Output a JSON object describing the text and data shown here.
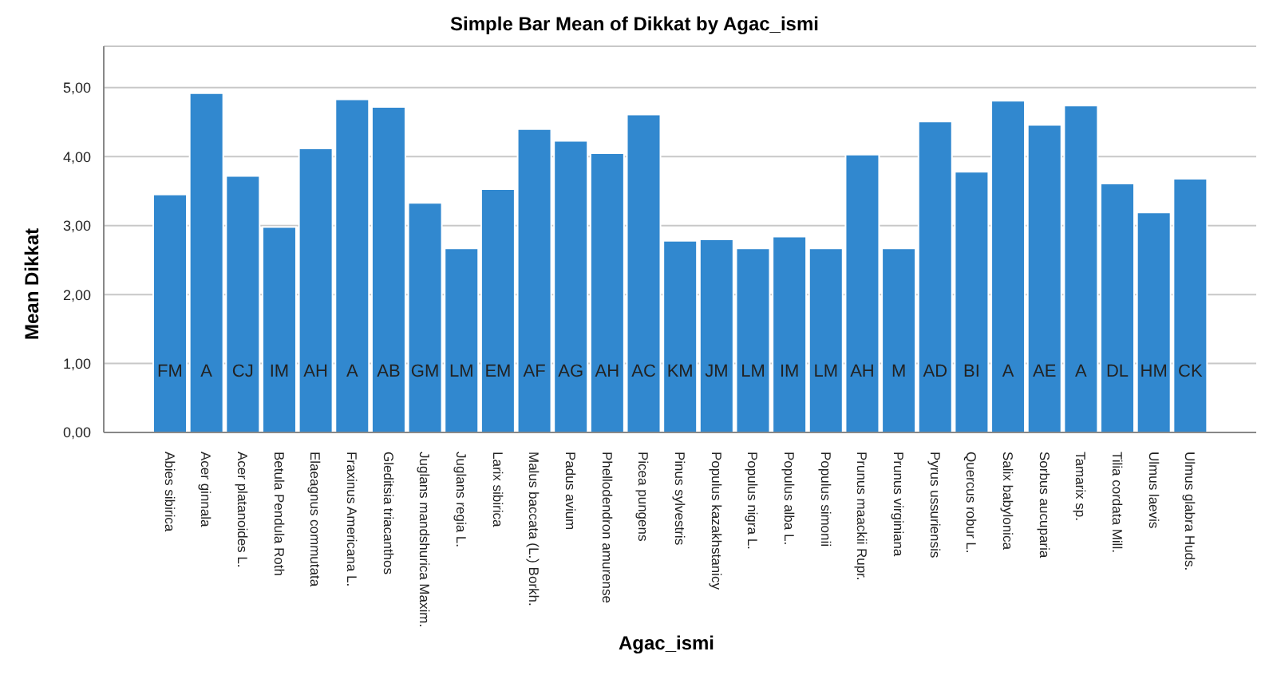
{
  "chart_data": {
    "type": "bar",
    "title": "Simple Bar Mean of Dikkat by Agac_ismi",
    "xlabel": "Agac_ismi",
    "ylabel": "Mean Dikkat",
    "categories": [
      "Abies sibirica",
      "Acer ginnala",
      "Acer platanoides L.",
      "Betula Pendula Roth",
      "Elaeagnus commutata",
      "Fraxinus Americana L.",
      "Gleditsia triacanthos",
      "Juglans mandshurica Maxim.",
      "Juglans regia L.",
      "Larix sibirica",
      "Malus baccata (L.) Borkh.",
      "Padus avium",
      "Phellodendron amurense",
      "Picea pungens",
      "Pinus sylvestris",
      "Populus kazakhstanicy",
      "Populus nigra L.",
      "Populus alba L.",
      "Populus simonii",
      "Prunus maackii Rupr.",
      "Prunus virginiana",
      "Pyrus ussuriensis",
      "Quercus robur L.",
      "Salix babylonica",
      "Sorbus aucuparia",
      "Tamarix sp.",
      "Tilia cordata Mill.",
      "Ulmus laevis",
      "Ulmus glabra Huds."
    ],
    "values": [
      3.45,
      4.92,
      3.72,
      2.98,
      4.12,
      4.83,
      4.72,
      3.33,
      2.67,
      3.53,
      4.4,
      4.23,
      4.05,
      4.61,
      2.78,
      2.8,
      2.67,
      2.84,
      2.67,
      4.03,
      2.67,
      4.51,
      3.78,
      4.81,
      4.46,
      4.74,
      3.61,
      3.19,
      3.68
    ],
    "color": "#3188cf",
    "ylim": [
      0,
      5.6
    ],
    "yticks": [
      {
        "value": 0,
        "label": "0,00"
      },
      {
        "value": 1,
        "label": "1,00"
      },
      {
        "value": 2,
        "label": "2,00"
      },
      {
        "value": 3,
        "label": "3,00"
      },
      {
        "value": 4,
        "label": "4,00"
      },
      {
        "value": 5,
        "label": "5,00"
      }
    ],
    "grid": "y",
    "legend": false,
    "annotations": [
      "FM",
      "A",
      "CJ",
      "IM",
      "AH",
      "A",
      "AB",
      "GM",
      "LM",
      "EM",
      "AF",
      "AG",
      "AH",
      "AC",
      "KM",
      "JM",
      "LM",
      "IM",
      "LM",
      "AH",
      "M",
      "AD",
      "BI",
      "A",
      "AE",
      "A",
      "DL",
      "HM",
      "CK"
    ]
  }
}
